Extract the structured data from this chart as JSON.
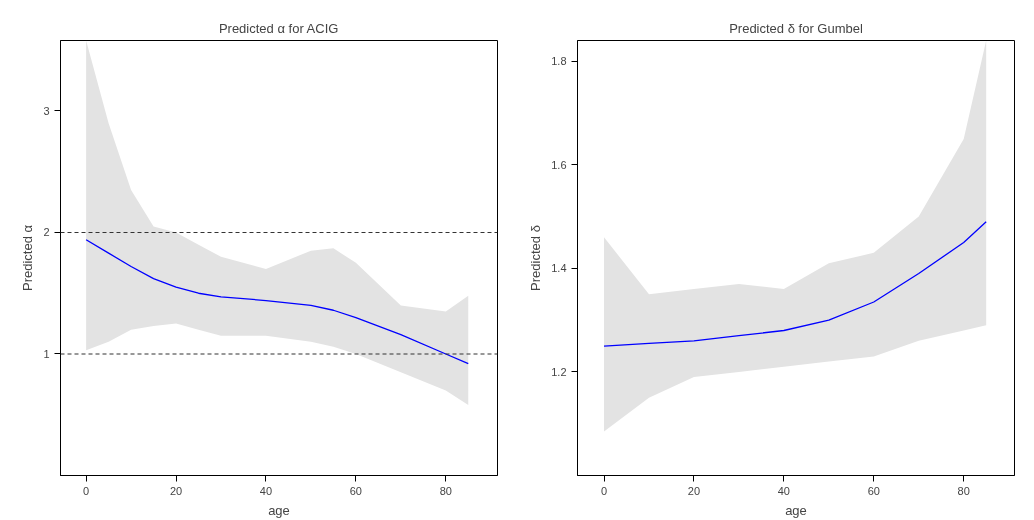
{
  "chart_data": [
    {
      "type": "line",
      "title": "Predicted α for ACIG",
      "xlabel": "age",
      "ylabel": "Predicted α",
      "xlim": [
        -5.7,
        91.5
      ],
      "ylim": [
        0,
        3.58
      ],
      "xticks": [
        0,
        20,
        40,
        60,
        80
      ],
      "yticks": [
        1,
        2,
        3
      ],
      "grid": false,
      "x": [
        0,
        5,
        10,
        15,
        20,
        25,
        30,
        40,
        50,
        55,
        60,
        70,
        80,
        85
      ],
      "series": [
        {
          "color": "#0000ff",
          "values": [
            1.94,
            1.83,
            1.72,
            1.62,
            1.55,
            1.5,
            1.47,
            1.44,
            1.4,
            1.36,
            1.3,
            1.16,
            1.0,
            0.92
          ],
          "lower": [
            1.03,
            1.1,
            1.2,
            1.23,
            1.25,
            1.2,
            1.15,
            1.15,
            1.1,
            1.06,
            1.0,
            0.85,
            0.7,
            0.58
          ],
          "upper": [
            3.58,
            2.9,
            2.35,
            2.05,
            2.0,
            1.9,
            1.8,
            1.7,
            1.85,
            1.87,
            1.75,
            1.4,
            1.35,
            1.48
          ]
        }
      ],
      "ref_lines": [
        {
          "axis": "y",
          "value": 2,
          "line_style": "dashed",
          "color": "#333333"
        },
        {
          "axis": "y",
          "value": 1,
          "line_style": "dashed",
          "color": "#333333"
        }
      ]
    },
    {
      "type": "line",
      "title": "Predicted δ for Gumbel",
      "xlabel": "age",
      "ylabel": "Predicted δ",
      "xlim": [
        -5.9,
        91.3
      ],
      "ylim": [
        1.0,
        1.84
      ],
      "xticks": [
        0,
        20,
        40,
        60,
        80
      ],
      "yticks": [
        1.2,
        1.4,
        1.6,
        1.8
      ],
      "grid": false,
      "x": [
        0,
        10,
        20,
        30,
        40,
        50,
        60,
        70,
        80,
        85
      ],
      "series": [
        {
          "color": "#0000ff",
          "values": [
            1.25,
            1.255,
            1.26,
            1.27,
            1.28,
            1.3,
            1.335,
            1.39,
            1.45,
            1.49
          ],
          "lower": [
            1.085,
            1.15,
            1.19,
            1.2,
            1.21,
            1.22,
            1.23,
            1.26,
            1.28,
            1.29
          ],
          "upper": [
            1.46,
            1.35,
            1.36,
            1.37,
            1.36,
            1.41,
            1.43,
            1.5,
            1.65,
            1.84
          ]
        }
      ]
    }
  ]
}
